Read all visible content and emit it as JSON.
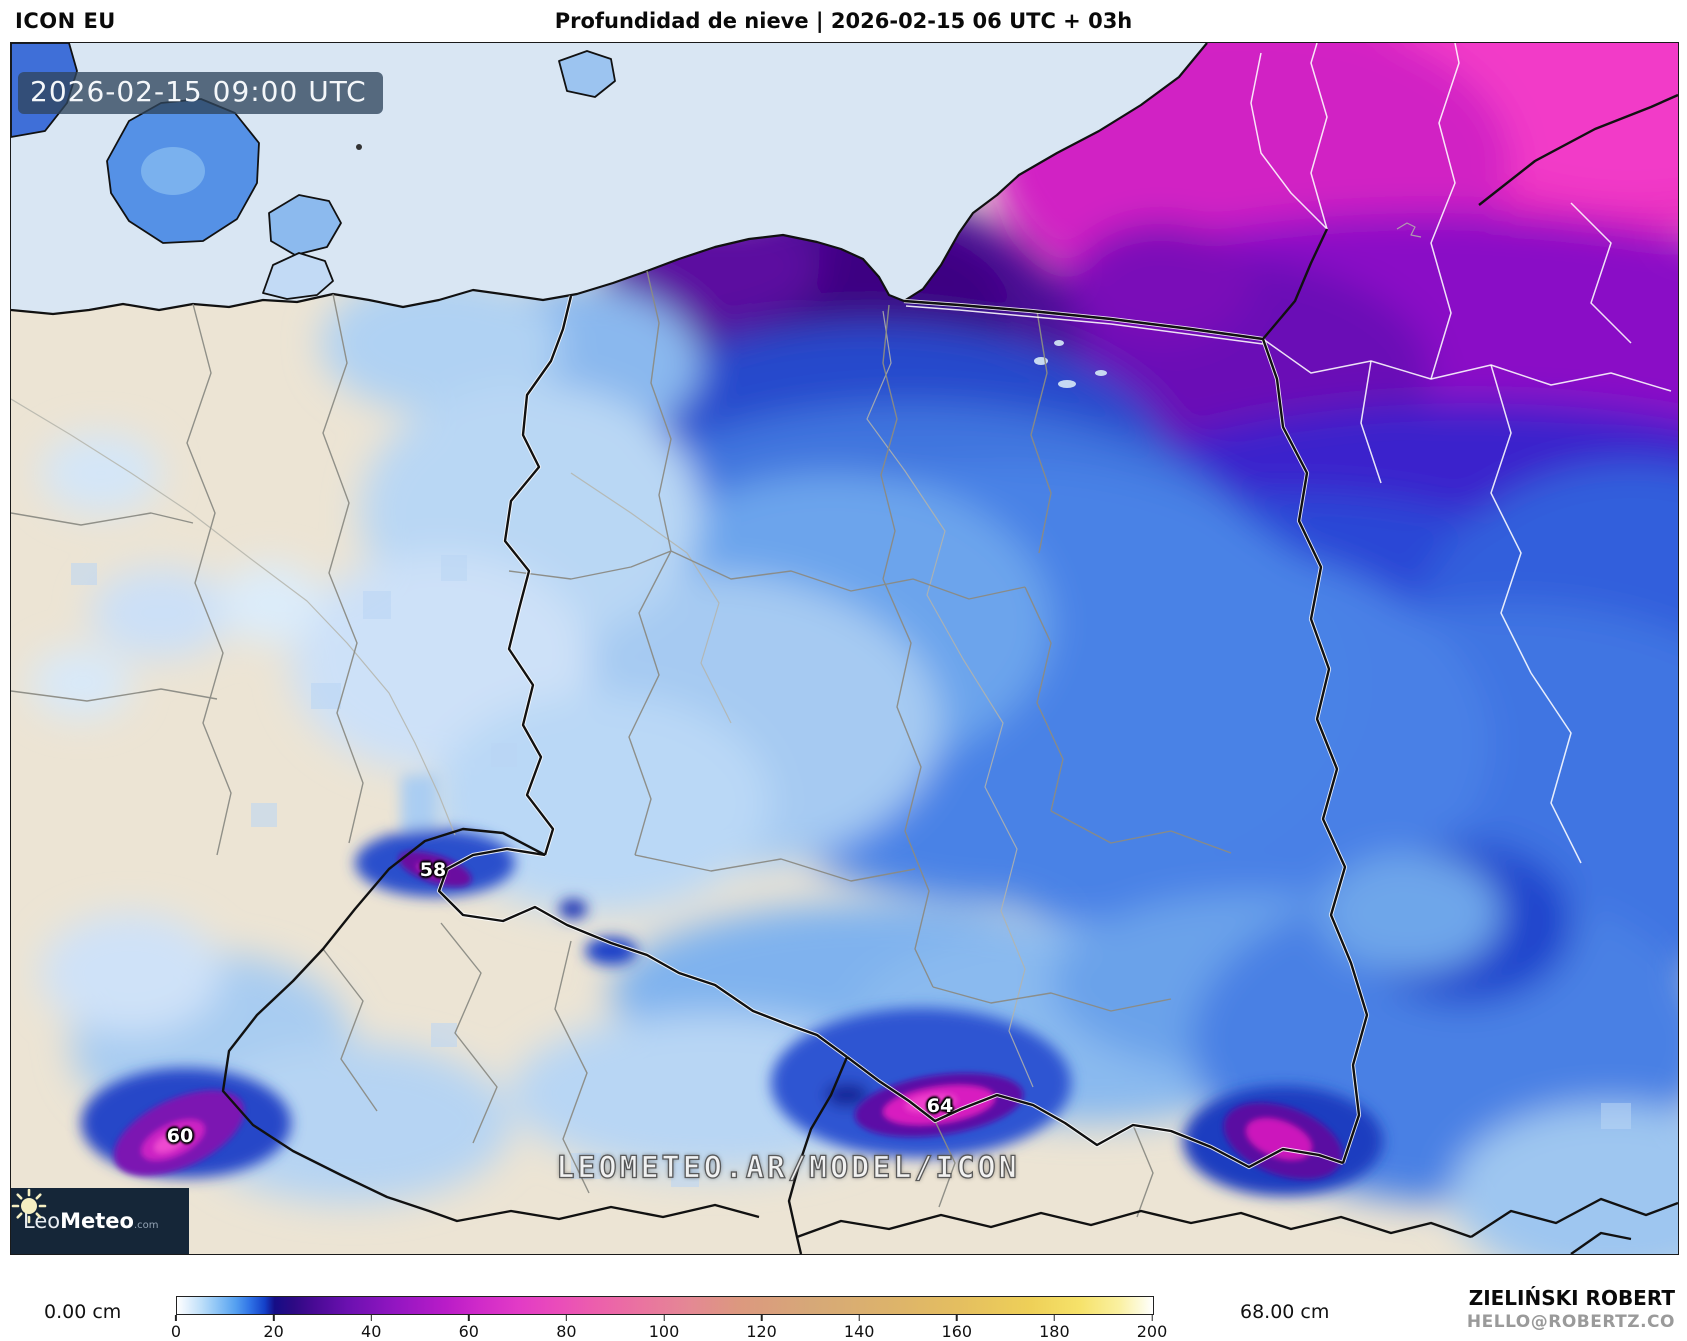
{
  "header": {
    "model": "ICON EU",
    "title": "Profundidad de nieve | 2026-02-15 06 UTC + 03h"
  },
  "map": {
    "timestamp_badge": "2026-02-15 09:00 UTC",
    "watermark": "LEOMETEO.AR/MODEL/ICON",
    "value_labels": [
      {
        "text": "58"
      },
      {
        "text": "60"
      },
      {
        "text": "64"
      }
    ]
  },
  "logo": {
    "brand_leo": "Leo",
    "brand_meteo": "Meteo",
    "brand_tld": ".com",
    "sun_icon": "sun-icon"
  },
  "legend": {
    "min_label": "0.00 cm",
    "max_label": "68.00 cm",
    "unit": "cm",
    "ticks": [
      "0",
      "20",
      "40",
      "60",
      "80",
      "100",
      "120",
      "140",
      "160",
      "180",
      "200"
    ]
  },
  "credits": {
    "author": "ZIELIŃSKI ROBERT",
    "email": "HELLO@ROBERTZ.CO"
  },
  "colors": {
    "sea": "#d9e6f3",
    "land": "#ece4d4",
    "snow_blue": "#4a82e4",
    "deep_purple": "#4c0a96",
    "max_magenta": "#e82cbe",
    "logo_bg": "#152638",
    "badge_bg": "rgba(47,69,92,0.78)"
  }
}
